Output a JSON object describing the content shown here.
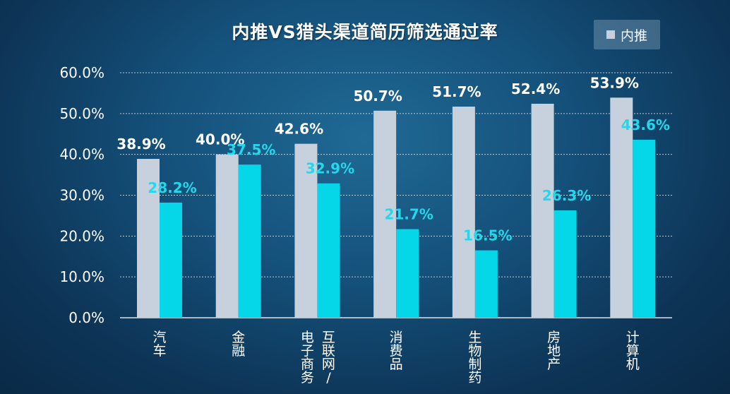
{
  "chart_data": {
    "type": "bar",
    "title": "内推VS猎头渠道简历筛选通过率",
    "categories": [
      "汽车",
      "金融",
      "电子商务/互联网",
      "消费品",
      "生物制药",
      "房地产",
      "计算机"
    ],
    "category_lines": [
      [
        "汽车"
      ],
      [
        "金融"
      ],
      [
        "电子商务",
        "互联网/"
      ],
      [
        "消费品"
      ],
      [
        "生物制药"
      ],
      [
        "房地产"
      ],
      [
        "计算机"
      ]
    ],
    "series": [
      {
        "name": "内推",
        "values": [
          38.9,
          40.0,
          42.6,
          50.7,
          51.7,
          52.4,
          53.9
        ],
        "color": "#c7d1de"
      },
      {
        "values": [
          28.2,
          37.5,
          32.9,
          21.7,
          16.5,
          26.3,
          43.6
        ],
        "color": "#05d6e8"
      }
    ],
    "value_labels": [
      [
        "38.9%",
        "40.0%",
        "42.6%",
        "50.7%",
        "51.7%",
        "52.4%",
        "53.9%"
      ],
      [
        "28.2%",
        "37.5%",
        "32.9%",
        "21.7%",
        "16.5%",
        "26.3%",
        "43.6%"
      ]
    ],
    "yticks": [
      "0.0%",
      "10.0%",
      "20.0%",
      "30.0%",
      "40.0%",
      "50.0%",
      "60.0%"
    ],
    "ylim": [
      0,
      60
    ],
    "grid": true,
    "legend": "top-right"
  },
  "legend_label": "内推"
}
